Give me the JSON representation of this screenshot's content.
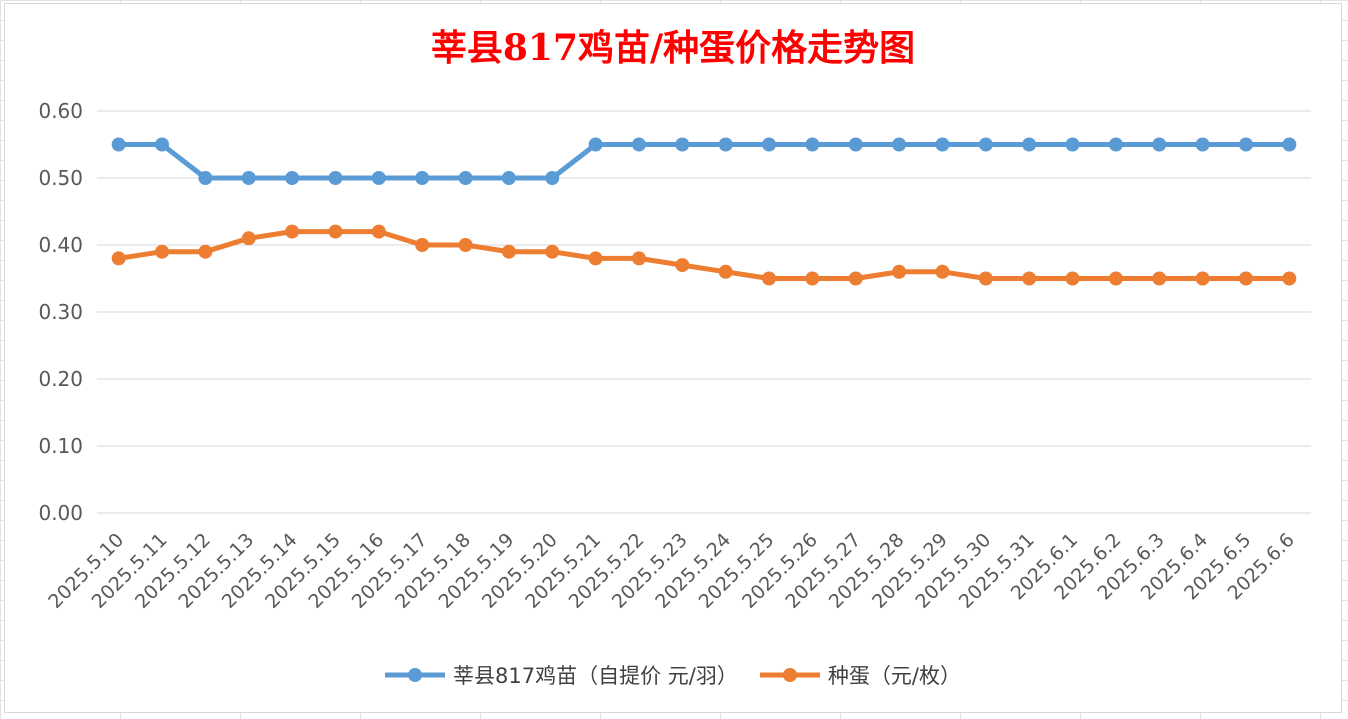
{
  "chart_data": {
    "type": "line",
    "title": "莘县817鸡苗/种蛋价格走势图",
    "categories": [
      "2025.5.10",
      "2025.5.11",
      "2025.5.12",
      "2025.5.13",
      "2025.5.14",
      "2025.5.15",
      "2025.5.16",
      "2025.5.17",
      "2025.5.18",
      "2025.5.19",
      "2025.5.20",
      "2025.5.21",
      "2025.5.22",
      "2025.5.23",
      "2025.5.24",
      "2025.5.25",
      "2025.5.26",
      "2025.5.27",
      "2025.5.28",
      "2025.5.29",
      "2025.5.30",
      "2025.5.31",
      "2025.6.1",
      "2025.6.2",
      "2025.6.3",
      "2025.6.4",
      "2025.6.5",
      "2025.6.6"
    ],
    "series": [
      {
        "name": "莘县817鸡苗（自提价 元/羽）",
        "color": "#5b9bd5",
        "values": [
          0.55,
          0.55,
          0.5,
          0.5,
          0.5,
          0.5,
          0.5,
          0.5,
          0.5,
          0.5,
          0.5,
          0.55,
          0.55,
          0.55,
          0.55,
          0.55,
          0.55,
          0.55,
          0.55,
          0.55,
          0.55,
          0.55,
          0.55,
          0.55,
          0.55,
          0.55,
          0.55,
          0.55
        ]
      },
      {
        "name": "种蛋（元/枚）",
        "color": "#ed7d31",
        "values": [
          0.38,
          0.39,
          0.39,
          0.41,
          0.42,
          0.42,
          0.42,
          0.4,
          0.4,
          0.39,
          0.39,
          0.38,
          0.38,
          0.37,
          0.36,
          0.35,
          0.35,
          0.35,
          0.36,
          0.36,
          0.35,
          0.35,
          0.35,
          0.35,
          0.35,
          0.35,
          0.35,
          0.35
        ]
      }
    ],
    "ylim": [
      0,
      0.6
    ],
    "yticks": [
      "0.00",
      "0.10",
      "0.20",
      "0.30",
      "0.40",
      "0.50",
      "0.60"
    ],
    "grid": true,
    "legend_position": "bottom",
    "title_color": "#ff0000"
  }
}
